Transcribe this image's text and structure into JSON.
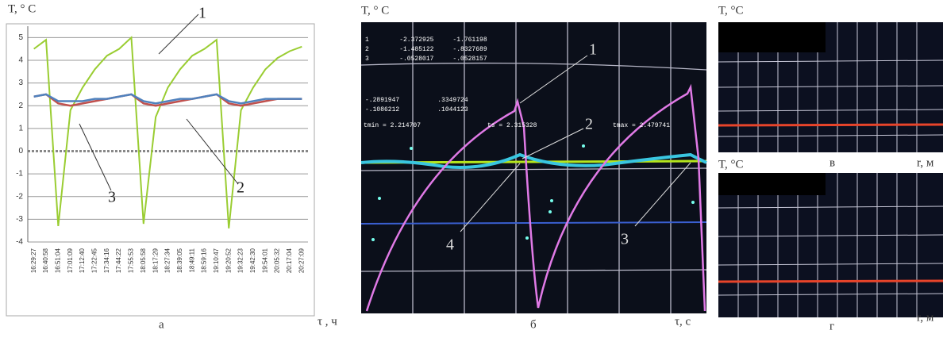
{
  "chart_data": [
    {
      "type": "line",
      "y_label": "T, ° C",
      "x_label": "τ , ч",
      "caption": "а",
      "categories": [
        "16:29:27",
        "16:40:58",
        "16:51:04",
        "17:01:09",
        "17:12:40",
        "17:22:45",
        "17:34:16",
        "17:44:22",
        "17:55:53",
        "18:05:58",
        "18:17:29",
        "18:27:34",
        "18:39:05",
        "18:49:11",
        "18:59:16",
        "19:10:47",
        "19:20:52",
        "19:32:23",
        "19:42:30",
        "19:54:01",
        "20:05:32",
        "20:17:04",
        "20:27:09"
      ],
      "series": [
        {
          "name": "1",
          "color": "#9acd32",
          "values": [
            4.5,
            4.9,
            -3.3,
            1.8,
            2.8,
            3.6,
            4.2,
            4.5,
            5.0,
            -3.2,
            1.5,
            2.8,
            3.6,
            4.2,
            4.5,
            4.9,
            -3.4,
            1.8,
            2.8,
            3.6,
            4.1,
            4.4,
            4.6
          ]
        },
        {
          "name": "2",
          "color": "#c0504d",
          "values": [
            2.4,
            2.5,
            2.1,
            2.0,
            2.1,
            2.2,
            2.3,
            2.4,
            2.5,
            2.1,
            2.0,
            2.1,
            2.2,
            2.3,
            2.4,
            2.5,
            2.1,
            2.0,
            2.1,
            2.2,
            2.3,
            2.3,
            2.3
          ]
        },
        {
          "name": "3",
          "color": "#4f81bd",
          "values": [
            2.4,
            2.5,
            2.2,
            2.2,
            2.2,
            2.3,
            2.3,
            2.4,
            2.5,
            2.2,
            2.1,
            2.2,
            2.3,
            2.3,
            2.4,
            2.5,
            2.2,
            2.1,
            2.2,
            2.3,
            2.3,
            2.3,
            2.3
          ]
        }
      ],
      "ylim": [
        -4,
        5.5
      ],
      "yticks": [
        -4,
        -3,
        -2,
        -1,
        0,
        1,
        2,
        3,
        4,
        5
      ],
      "grid": true
    }
  ],
  "panel_b": {
    "y_label": "T, ° C",
    "x_label": "τ, с",
    "caption": "б",
    "readout": [
      "1        -2.372925     -1.761198",
      "2        -1.485122     -.8327689",
      "3        -.0528017     -.0528157",
      "-.2891947          .3349724",
      "-.1086212          .1044123"
    ],
    "tmin": "tmin = 2.214707",
    "ts": "ts = 2.315328",
    "tmax": "tmax = 2.479741",
    "annotations": [
      "1",
      "2",
      "3",
      "4"
    ]
  },
  "panel_c": {
    "y_label": "T, °C",
    "x_label": "r, м",
    "caption": "в"
  },
  "panel_d": {
    "y_label": "T, °C",
    "x_label": "r, м",
    "caption": "г"
  }
}
